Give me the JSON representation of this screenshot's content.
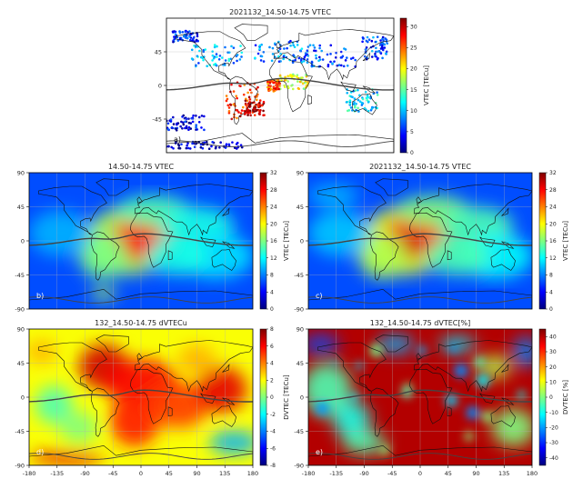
{
  "panels": [
    {
      "id": "a",
      "title": "2021132_14.50-14.75 VTEC",
      "letter": "a)",
      "colorbar": {
        "label": "VTEC [TECu]",
        "ticks": [
          "0",
          "5",
          "10",
          "15",
          "20",
          "25",
          "30"
        ],
        "min": 0,
        "max": 32
      },
      "yticks": [
        "45",
        "0",
        "-45"
      ],
      "xticks": [],
      "colormap": "jet",
      "field": "sparse"
    },
    {
      "id": "b",
      "title": "14.50-14.75 VTEC",
      "letter": "b)",
      "colorbar": {
        "label": "VTEC [TECu]",
        "ticks": [
          "0",
          "4",
          "8",
          "12",
          "16",
          "20",
          "24",
          "28",
          "32"
        ],
        "min": 0,
        "max": 32
      },
      "yticks": [
        "90",
        "45",
        "0",
        "-45",
        "-90"
      ],
      "xticks": [],
      "colormap": "jet",
      "field": "vtec_mean"
    },
    {
      "id": "c",
      "title": "2021132_14.50-14.75 VTEC",
      "letter": "c)",
      "colorbar": {
        "label": "VTEC [TECu]",
        "ticks": [
          "0",
          "4",
          "8",
          "12",
          "16",
          "20",
          "24",
          "28",
          "32"
        ],
        "min": 0,
        "max": 32
      },
      "yticks": [
        "90",
        "45",
        "0",
        "-45",
        "-90"
      ],
      "xticks": [],
      "colormap": "jet",
      "field": "vtec_day"
    },
    {
      "id": "d",
      "title": "132_14.50-14.75 dVTECu",
      "letter": "d)",
      "colorbar": {
        "label": "DVTEC [TECu]",
        "ticks": [
          "-8",
          "-6",
          "-4",
          "-2",
          "0",
          "2",
          "4",
          "6",
          "8"
        ],
        "min": -8,
        "max": 8
      },
      "yticks": [
        "90",
        "45",
        "0",
        "-45",
        "-90"
      ],
      "xticks": [
        "-180",
        "-135",
        "-90",
        "-45",
        "0",
        "45",
        "90",
        "135",
        "180"
      ],
      "colormap": "jet",
      "field": "dvtec_abs"
    },
    {
      "id": "e",
      "title": "132_14.50-14.75 dVTEC[%]",
      "letter": "e)",
      "colorbar": {
        "label": "DVTEC [%]",
        "ticks": [
          "-40",
          "-30",
          "-20",
          "-10",
          "0",
          "10",
          "20",
          "30",
          "40"
        ],
        "min": -45,
        "max": 45
      },
      "yticks": [
        "90",
        "45",
        "0",
        "-45",
        "-90"
      ],
      "xticks": [
        "-180",
        "-135",
        "-90",
        "-45",
        "0",
        "45",
        "90",
        "135",
        "180"
      ],
      "colormap": "jet",
      "field": "dvtec_pct"
    }
  ],
  "chart_data": [
    {
      "type": "heatmap",
      "panel": "a",
      "title": "2021132_14.50-14.75 VTEC",
      "colorbar_label": "VTEC [TECu]",
      "crange": [
        0,
        32
      ],
      "xlim": [
        -180,
        180
      ],
      "ylim": [
        -90,
        90
      ],
      "note": "sparse observation tracks"
    },
    {
      "type": "heatmap",
      "panel": "b",
      "title": "14.50-14.75 VTEC",
      "colorbar_label": "VTEC [TECu]",
      "crange": [
        0,
        32
      ],
      "xlim": [
        -180,
        180
      ],
      "ylim": [
        -90,
        90
      ]
    },
    {
      "type": "heatmap",
      "panel": "c",
      "title": "2021132_14.50-14.75 VTEC",
      "colorbar_label": "VTEC [TECu]",
      "crange": [
        0,
        32
      ],
      "xlim": [
        -180,
        180
      ],
      "ylim": [
        -90,
        90
      ]
    },
    {
      "type": "heatmap",
      "panel": "d",
      "title": "132_14.50-14.75 dVTECu",
      "colorbar_label": "DVTEC [TECu]",
      "crange": [
        -8,
        8
      ],
      "xlim": [
        -180,
        180
      ],
      "ylim": [
        -90,
        90
      ]
    },
    {
      "type": "heatmap",
      "panel": "e",
      "title": "132_14.50-14.75 dVTEC[%]",
      "colorbar_label": "DVTEC [%]",
      "crange": [
        -45,
        45
      ],
      "xlim": [
        -180,
        180
      ],
      "ylim": [
        -90,
        90
      ]
    }
  ]
}
